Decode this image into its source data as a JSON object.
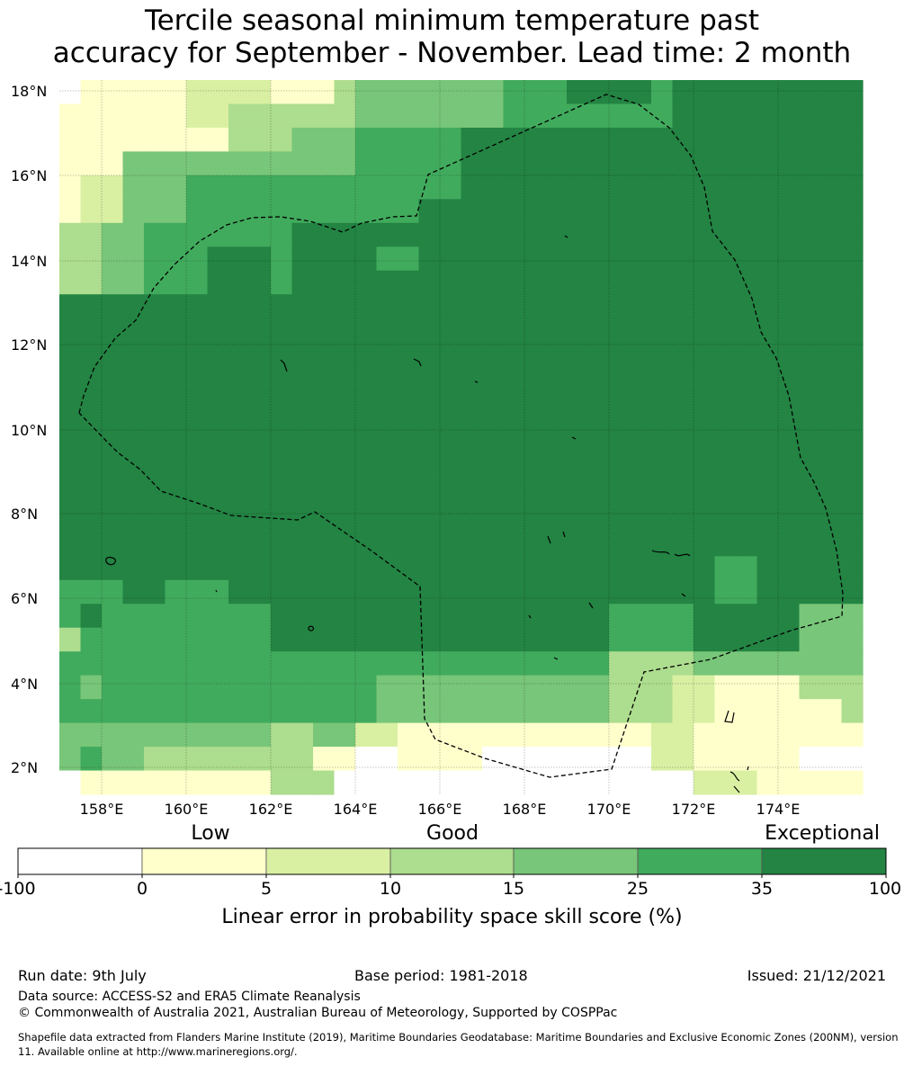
{
  "title": {
    "line1": "Tercile seasonal minimum temperature past",
    "line2": "accuracy for September - November. Lead time: 2 month"
  },
  "map": {
    "lat_labels": [
      "18°N",
      "16°N",
      "14°N",
      "12°N",
      "10°N",
      "8°N",
      "6°N",
      "4°N",
      "2°N"
    ],
    "lon_labels": [
      "158°E",
      "160°E",
      "162°E",
      "164°E",
      "166°E",
      "168°E",
      "170°E",
      "172°E",
      "174°E"
    ],
    "lat_range": [
      1.4,
      18.3
    ],
    "lon_range": [
      157.0,
      176.0
    ],
    "gridlines": true,
    "overlay": "dashed maritime boundary (EEZ) outline with island coastlines"
  },
  "legend": {
    "categories": [
      "Low",
      "Good",
      "Exceptional"
    ],
    "ticks": [
      "-100",
      "0",
      "5",
      "10",
      "15",
      "25",
      "35",
      "100"
    ],
    "bins": [
      {
        "range": "-100 to 0",
        "color": "#ffffff"
      },
      {
        "range": "0 to 5",
        "color": "#ffffcc"
      },
      {
        "range": "5 to 10",
        "color": "#d9f0a3"
      },
      {
        "range": "10 to 15",
        "color": "#addd8e"
      },
      {
        "range": "15 to 25",
        "color": "#78c679"
      },
      {
        "range": "25 to 35",
        "color": "#41ab5d"
      },
      {
        "range": "35 to 100",
        "color": "#238443"
      }
    ],
    "title": "Linear error in probability space skill score (%)"
  },
  "footer": {
    "run_date": "Run date: 9th July",
    "base_period": "Base period: 1981-2018",
    "issued": "Issued: 21/12/2021",
    "data_source": "Data source: ACCESS-S2 and ERA5 Climate Reanalysis",
    "copyright": "© Commonwealth of Australia 2021, Australian Bureau of Meteorology, Supported by COSPPac",
    "shapefile_note": "Shapefile data extracted from Flanders Marine Institute (2019), Maritime Boundaries Geodatabase: Maritime Boundaries and Exclusive Economic Zones (200NM), version 11. Available online at http://www.marineregions.org/."
  }
}
